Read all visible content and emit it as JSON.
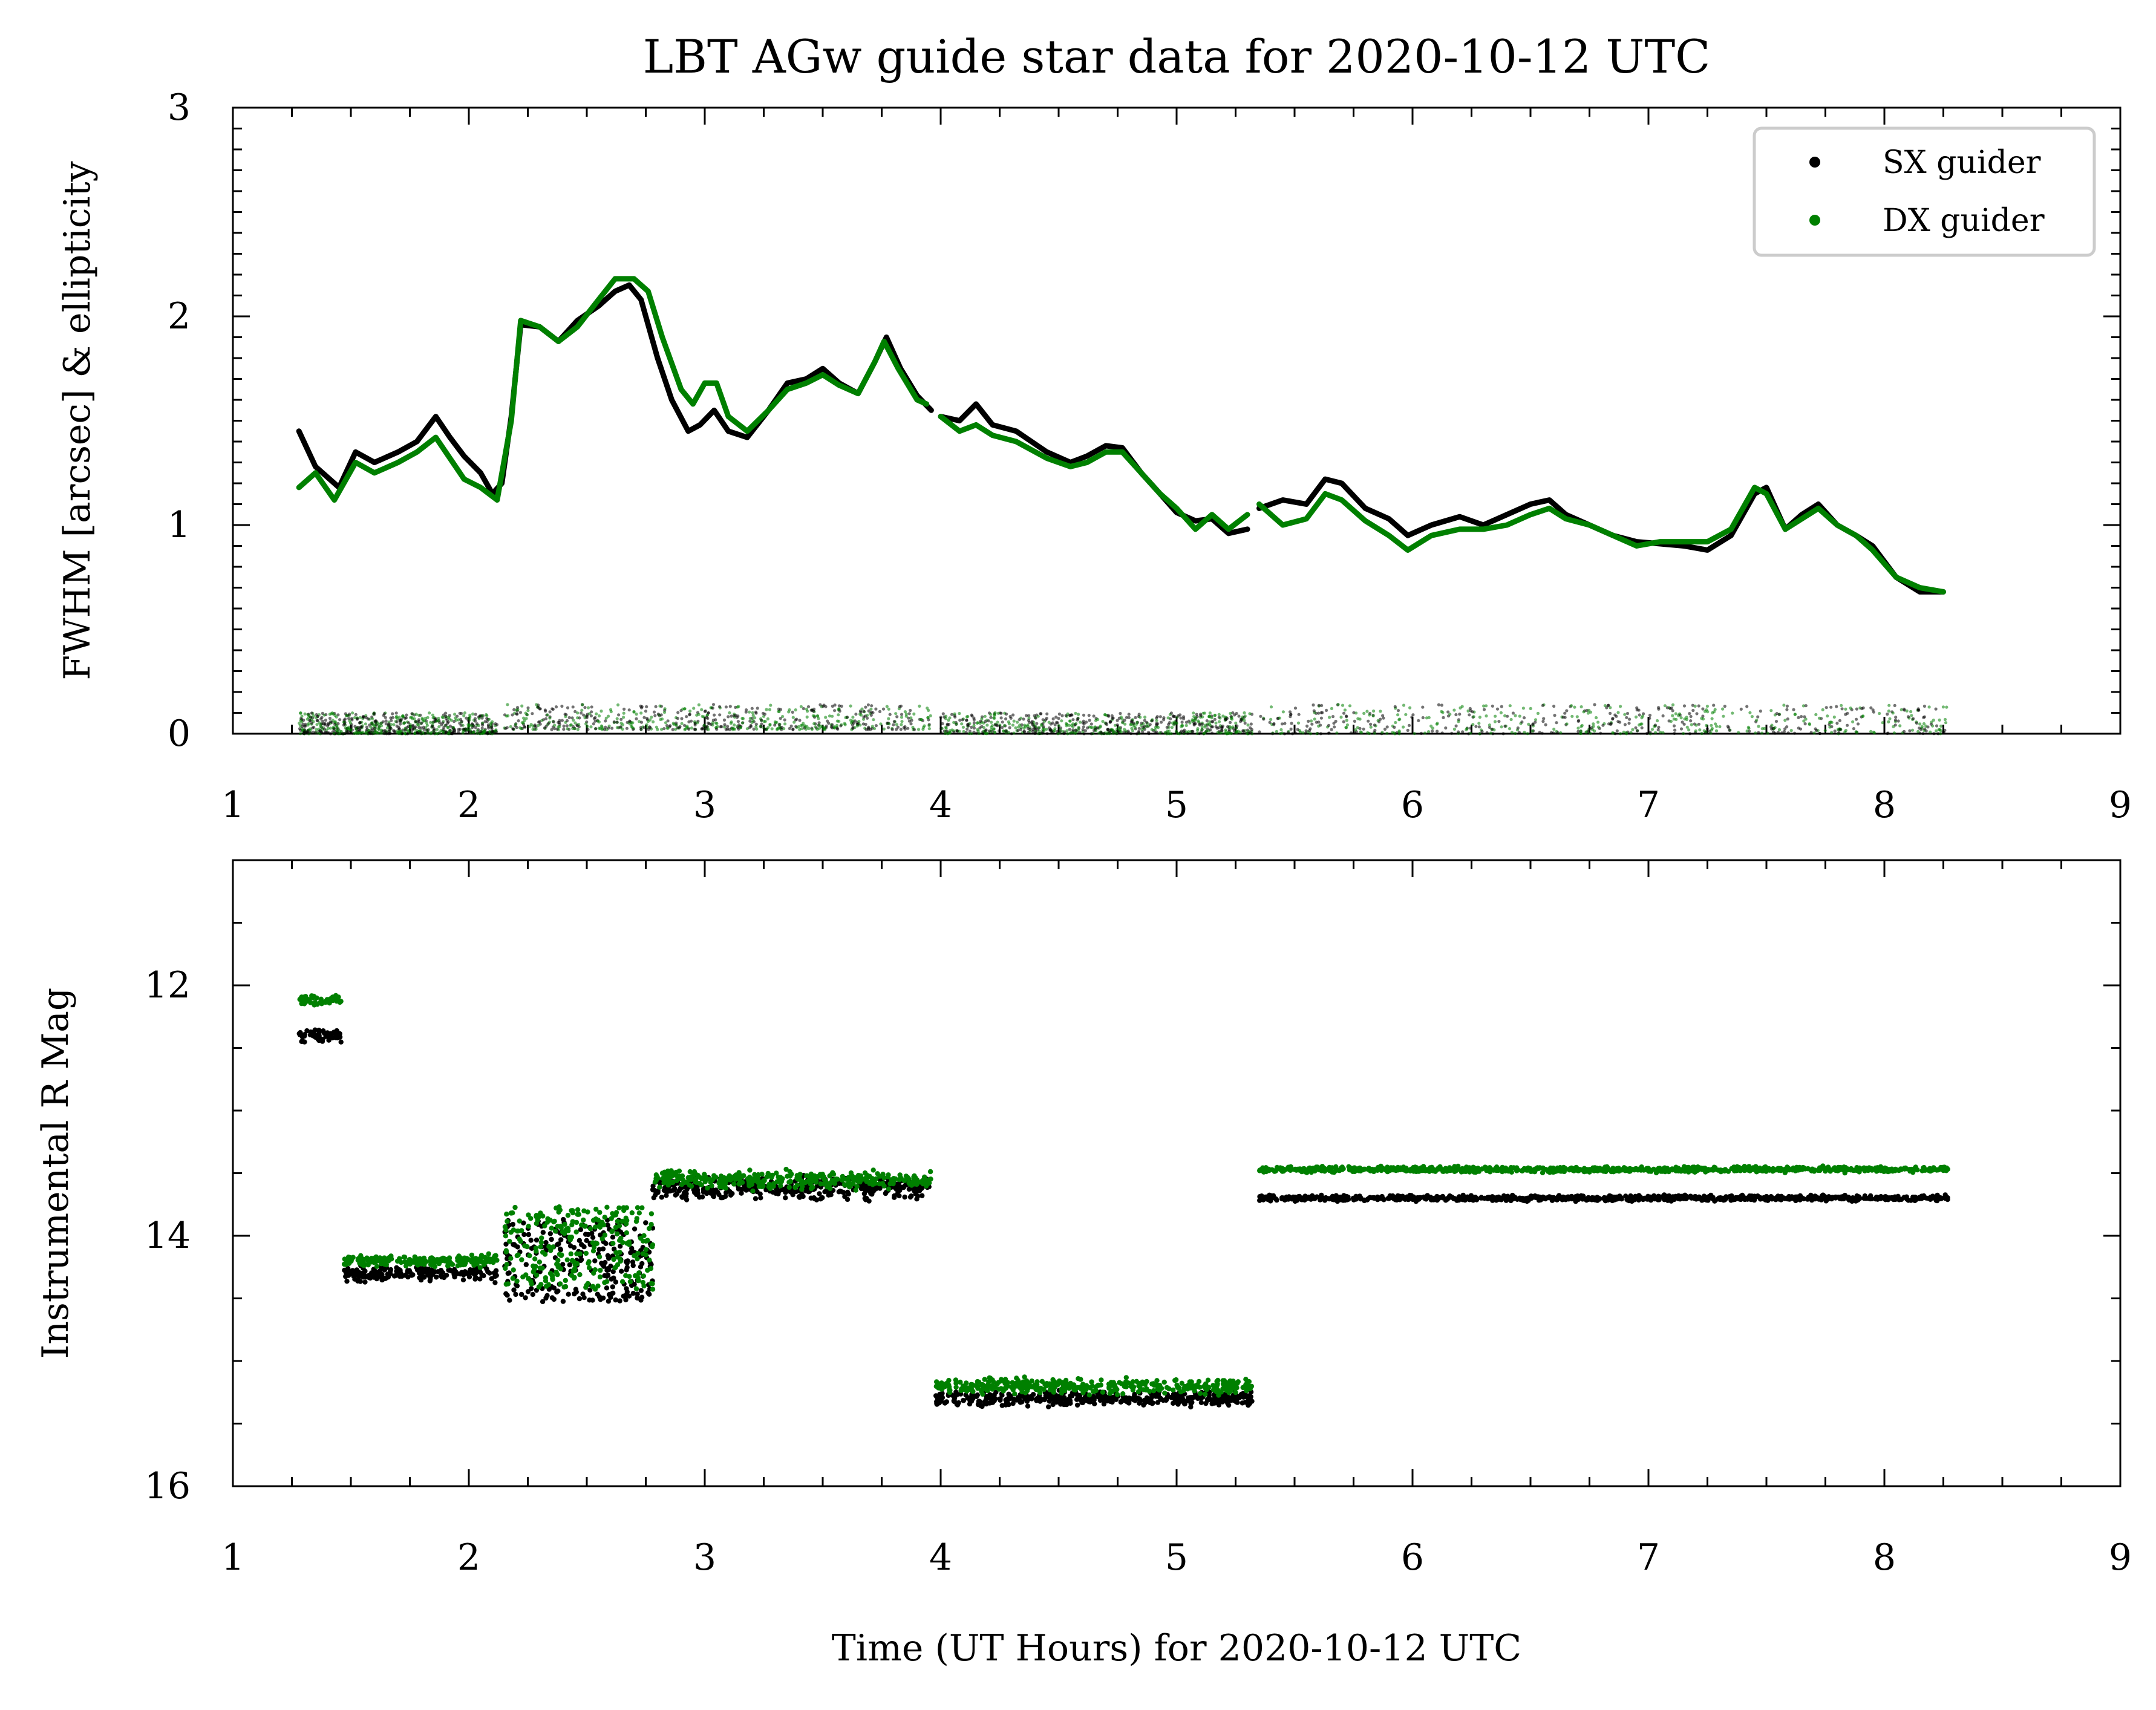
{
  "title": "LBT AGw guide star data for 2020-10-12 UTC",
  "xlabel": "Time (UT Hours) for 2020-10-12 UTC",
  "colors": {
    "sx": "#000000",
    "dx": "#008000"
  },
  "legend": {
    "position": "top-right",
    "entries": [
      {
        "label": "SX guider",
        "color": "#000000"
      },
      {
        "label": "DX guider",
        "color": "#008000"
      }
    ]
  },
  "chart_data": [
    {
      "type": "line",
      "ylabel": "FWHM [arcsec] & ellipticity",
      "xlim": [
        1,
        9
      ],
      "ylim": [
        0,
        3
      ],
      "xticks": [
        "1",
        "2",
        "3",
        "4",
        "5",
        "6",
        "7",
        "8",
        "9"
      ],
      "yticks": [
        "0",
        "1",
        "2",
        "3"
      ],
      "x_minor_step": 0.25,
      "y_minor_step": 0.1,
      "grid": false,
      "series": [
        {
          "name": "SX guider",
          "role": "fwhm",
          "color": "#000000",
          "points": [
            [
              1.28,
              1.45
            ],
            [
              1.35,
              1.28
            ],
            [
              1.45,
              1.18
            ],
            [
              1.52,
              1.35
            ],
            [
              1.6,
              1.3
            ],
            [
              1.7,
              1.35
            ],
            [
              1.78,
              1.4
            ],
            [
              1.86,
              1.52
            ],
            [
              1.92,
              1.42
            ],
            [
              1.98,
              1.33
            ],
            [
              2.05,
              1.25
            ],
            [
              2.1,
              1.15
            ],
            [
              2.14,
              1.2
            ],
            [
              2.18,
              1.52
            ],
            [
              2.22,
              1.96
            ],
            [
              2.3,
              1.95
            ],
            [
              2.38,
              1.88
            ],
            [
              2.46,
              1.98
            ],
            [
              2.55,
              2.05
            ],
            [
              2.62,
              2.12
            ],
            [
              2.68,
              2.15
            ],
            [
              2.73,
              2.08
            ],
            [
              2.8,
              1.8
            ],
            [
              2.86,
              1.6
            ],
            [
              2.93,
              1.45
            ],
            [
              2.98,
              1.48
            ],
            [
              3.04,
              1.55
            ],
            [
              3.1,
              1.45
            ],
            [
              3.18,
              1.42
            ],
            [
              3.27,
              1.55
            ],
            [
              3.35,
              1.68
            ],
            [
              3.43,
              1.7
            ],
            [
              3.5,
              1.75
            ],
            [
              3.57,
              1.68
            ],
            [
              3.65,
              1.63
            ],
            [
              3.72,
              1.78
            ],
            [
              3.77,
              1.9
            ],
            [
              3.83,
              1.75
            ],
            [
              3.9,
              1.62
            ],
            [
              3.96,
              1.55
            ]
          ]
        },
        {
          "name": "SX guider",
          "role": "fwhm",
          "color": "#000000",
          "points": [
            [
              4.0,
              1.52
            ],
            [
              4.08,
              1.5
            ],
            [
              4.15,
              1.58
            ],
            [
              4.22,
              1.48
            ],
            [
              4.32,
              1.45
            ],
            [
              4.45,
              1.35
            ],
            [
              4.55,
              1.3
            ],
            [
              4.62,
              1.33
            ],
            [
              4.7,
              1.38
            ],
            [
              4.77,
              1.37
            ],
            [
              4.85,
              1.25
            ],
            [
              4.93,
              1.15
            ],
            [
              5.0,
              1.06
            ],
            [
              5.08,
              1.02
            ],
            [
              5.15,
              1.03
            ],
            [
              5.22,
              0.96
            ],
            [
              5.3,
              0.98
            ]
          ]
        },
        {
          "name": "SX guider",
          "role": "fwhm",
          "color": "#000000",
          "points": [
            [
              5.35,
              1.08
            ],
            [
              5.45,
              1.12
            ],
            [
              5.55,
              1.1
            ],
            [
              5.63,
              1.22
            ],
            [
              5.7,
              1.2
            ],
            [
              5.8,
              1.08
            ],
            [
              5.9,
              1.03
            ],
            [
              5.98,
              0.95
            ],
            [
              6.08,
              1.0
            ],
            [
              6.2,
              1.04
            ],
            [
              6.3,
              1.0
            ],
            [
              6.4,
              1.05
            ],
            [
              6.5,
              1.1
            ],
            [
              6.58,
              1.12
            ],
            [
              6.65,
              1.05
            ],
            [
              6.75,
              1.0
            ],
            [
              6.85,
              0.95
            ],
            [
              6.95,
              0.92
            ],
            [
              7.05,
              0.91
            ],
            [
              7.15,
              0.9
            ],
            [
              7.25,
              0.88
            ],
            [
              7.35,
              0.95
            ],
            [
              7.45,
              1.15
            ],
            [
              7.5,
              1.18
            ],
            [
              7.58,
              0.98
            ],
            [
              7.65,
              1.05
            ],
            [
              7.72,
              1.1
            ],
            [
              7.8,
              1.0
            ],
            [
              7.88,
              0.95
            ],
            [
              7.95,
              0.9
            ],
            [
              8.05,
              0.75
            ],
            [
              8.15,
              0.68
            ],
            [
              8.25,
              0.68
            ]
          ]
        },
        {
          "name": "DX guider",
          "role": "fwhm",
          "color": "#008000",
          "points": [
            [
              1.28,
              1.18
            ],
            [
              1.35,
              1.25
            ],
            [
              1.43,
              1.12
            ],
            [
              1.52,
              1.3
            ],
            [
              1.6,
              1.25
            ],
            [
              1.7,
              1.3
            ],
            [
              1.78,
              1.35
            ],
            [
              1.86,
              1.42
            ],
            [
              1.92,
              1.32
            ],
            [
              1.98,
              1.22
            ],
            [
              2.05,
              1.18
            ],
            [
              2.12,
              1.12
            ],
            [
              2.18,
              1.5
            ],
            [
              2.22,
              1.98
            ],
            [
              2.3,
              1.95
            ],
            [
              2.38,
              1.88
            ],
            [
              2.46,
              1.95
            ],
            [
              2.55,
              2.08
            ],
            [
              2.62,
              2.18
            ],
            [
              2.7,
              2.18
            ],
            [
              2.76,
              2.12
            ],
            [
              2.82,
              1.9
            ],
            [
              2.9,
              1.65
            ],
            [
              2.95,
              1.58
            ],
            [
              3.0,
              1.68
            ],
            [
              3.05,
              1.68
            ],
            [
              3.1,
              1.52
            ],
            [
              3.18,
              1.45
            ],
            [
              3.27,
              1.55
            ],
            [
              3.35,
              1.65
            ],
            [
              3.43,
              1.68
            ],
            [
              3.5,
              1.72
            ],
            [
              3.57,
              1.67
            ],
            [
              3.65,
              1.63
            ],
            [
              3.72,
              1.78
            ],
            [
              3.76,
              1.88
            ],
            [
              3.82,
              1.75
            ],
            [
              3.9,
              1.6
            ],
            [
              3.94,
              1.58
            ]
          ]
        },
        {
          "name": "DX guider",
          "role": "fwhm",
          "color": "#008000",
          "points": [
            [
              4.0,
              1.52
            ],
            [
              4.08,
              1.45
            ],
            [
              4.15,
              1.48
            ],
            [
              4.22,
              1.43
            ],
            [
              4.32,
              1.4
            ],
            [
              4.45,
              1.32
            ],
            [
              4.55,
              1.28
            ],
            [
              4.62,
              1.3
            ],
            [
              4.7,
              1.35
            ],
            [
              4.77,
              1.35
            ],
            [
              4.85,
              1.25
            ],
            [
              4.93,
              1.15
            ],
            [
              5.0,
              1.08
            ],
            [
              5.08,
              0.98
            ],
            [
              5.15,
              1.05
            ],
            [
              5.22,
              0.98
            ],
            [
              5.3,
              1.05
            ]
          ]
        },
        {
          "name": "DX guider",
          "role": "fwhm",
          "color": "#008000",
          "points": [
            [
              5.35,
              1.1
            ],
            [
              5.45,
              1.0
            ],
            [
              5.55,
              1.03
            ],
            [
              5.63,
              1.15
            ],
            [
              5.7,
              1.12
            ],
            [
              5.8,
              1.02
            ],
            [
              5.9,
              0.95
            ],
            [
              5.98,
              0.88
            ],
            [
              6.08,
              0.95
            ],
            [
              6.2,
              0.98
            ],
            [
              6.3,
              0.98
            ],
            [
              6.4,
              1.0
            ],
            [
              6.5,
              1.05
            ],
            [
              6.58,
              1.08
            ],
            [
              6.65,
              1.03
            ],
            [
              6.75,
              1.0
            ],
            [
              6.85,
              0.95
            ],
            [
              6.95,
              0.9
            ],
            [
              7.05,
              0.92
            ],
            [
              7.15,
              0.92
            ],
            [
              7.25,
              0.92
            ],
            [
              7.35,
              0.98
            ],
            [
              7.45,
              1.18
            ],
            [
              7.5,
              1.15
            ],
            [
              7.58,
              0.98
            ],
            [
              7.65,
              1.03
            ],
            [
              7.72,
              1.08
            ],
            [
              7.8,
              1.0
            ],
            [
              7.88,
              0.95
            ],
            [
              7.95,
              0.88
            ],
            [
              8.05,
              0.75
            ],
            [
              8.15,
              0.7
            ],
            [
              8.25,
              0.68
            ]
          ]
        }
      ],
      "ellipticity_bands": [
        {
          "x": [
            1.28,
            2.12
          ],
          "y": [
            0.0,
            0.1
          ]
        },
        {
          "x": [
            2.15,
            3.96
          ],
          "y": [
            0.02,
            0.14
          ]
        },
        {
          "x": [
            4.0,
            5.32
          ],
          "y": [
            0.0,
            0.1
          ]
        },
        {
          "x": [
            5.35,
            8.27
          ],
          "y": [
            0.0,
            0.14
          ]
        }
      ]
    },
    {
      "type": "scatter",
      "ylabel": "Instrumental R Mag",
      "xlim": [
        1,
        9
      ],
      "ylim": [
        16,
        11
      ],
      "y_inverted": true,
      "xticks": [
        "1",
        "2",
        "3",
        "4",
        "5",
        "6",
        "7",
        "8",
        "9"
      ],
      "yticks": [
        "12",
        "14",
        "16"
      ],
      "x_minor_step": 0.25,
      "y_minor_step": 0.5,
      "grid": false,
      "series": [
        {
          "name": "SX guider",
          "color": "#000000",
          "segments": [
            {
              "x": [
                1.28,
                1.46
              ],
              "y": 12.4,
              "spread": 0.04
            },
            {
              "x": [
                1.47,
                2.12
              ],
              "y": 14.3,
              "spread": 0.04
            },
            {
              "x": [
                2.15,
                2.78
              ],
              "y": 14.1,
              "spread": 0.3
            },
            {
              "x": [
                2.78,
                3.96
              ],
              "y": 13.62,
              "spread": 0.06
            },
            {
              "x": [
                3.98,
                5.32
              ],
              "y": 15.3,
              "spread": 0.04
            },
            {
              "x": [
                5.35,
                8.27
              ],
              "y": 13.7,
              "spread": 0.015
            }
          ]
        },
        {
          "name": "DX guider",
          "color": "#008000",
          "segments": [
            {
              "x": [
                1.28,
                1.46
              ],
              "y": 12.12,
              "spread": 0.03
            },
            {
              "x": [
                1.47,
                2.12
              ],
              "y": 14.2,
              "spread": 0.03
            },
            {
              "x": [
                2.15,
                2.78
              ],
              "y": 14.0,
              "spread": 0.3
            },
            {
              "x": [
                2.78,
                3.96
              ],
              "y": 13.55,
              "spread": 0.05
            },
            {
              "x": [
                3.98,
                5.32
              ],
              "y": 15.2,
              "spread": 0.04
            },
            {
              "x": [
                5.35,
                8.27
              ],
              "y": 13.47,
              "spread": 0.015
            }
          ]
        }
      ]
    }
  ]
}
